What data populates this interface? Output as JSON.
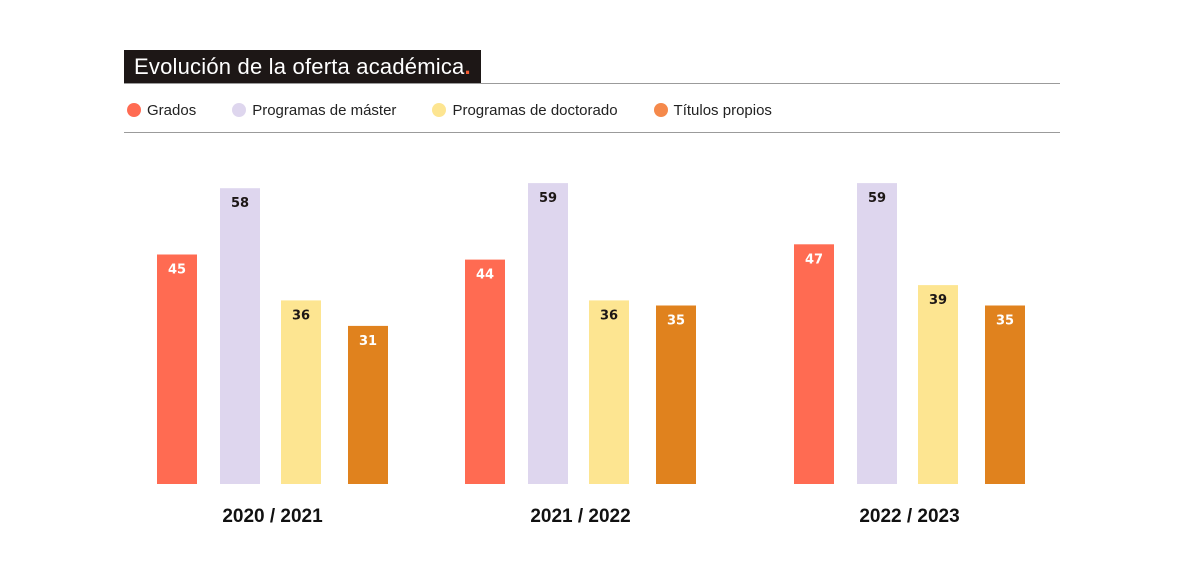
{
  "title": "Evolución de la oferta académica",
  "title_dot": ".",
  "colors": {
    "title_bg": "#1d1716",
    "accent": "#f25b32",
    "rule": "#9b9b9b"
  },
  "legend": [
    {
      "label": "Grados",
      "color": "#ff6b52"
    },
    {
      "label": "Programas de máster",
      "color": "#ded6ee"
    },
    {
      "label": "Programas de doctorado",
      "color": "#fde591"
    },
    {
      "label": "Títulos propios",
      "color": "#f5894b"
    }
  ],
  "chart_data": {
    "type": "bar",
    "title": "Evolución de la oferta académica",
    "categories": [
      "2020 / 2021",
      "2021 / 2022",
      "2022 / 2023"
    ],
    "series": [
      {
        "name": "Grados",
        "values": [
          45,
          44,
          47
        ],
        "color": "#ff6b52",
        "label_color": "#ffffff"
      },
      {
        "name": "Programas de máster",
        "values": [
          58,
          59,
          59
        ],
        "color": "#ded6ee",
        "label_color": "#1d1716"
      },
      {
        "name": "Programas de doctorado",
        "values": [
          36,
          36,
          39
        ],
        "color": "#fde591",
        "label_color": "#1d1716"
      },
      {
        "name": "Títulos propios",
        "values": [
          31,
          35,
          35
        ],
        "color": "#e0821e",
        "label_color": "#ffffff"
      }
    ],
    "grid": false,
    "legend_position": "top-left"
  }
}
